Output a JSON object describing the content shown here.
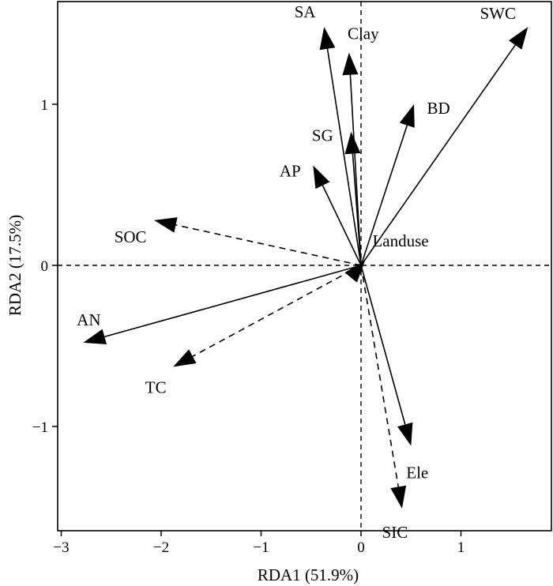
{
  "chart_data": {
    "type": "scatter",
    "subtype": "rda-biplot",
    "title": "",
    "xlabel": "RDA1 (51.9%)",
    "ylabel": "RDA2 (17.5%)",
    "xlim": [
      -3.05,
      1.9
    ],
    "ylim": [
      -1.65,
      1.62
    ],
    "xticks": [
      -3,
      -2,
      -1,
      0,
      1
    ],
    "yticks": [
      -1,
      0,
      1
    ],
    "xtick_labels": [
      "−3",
      "−2",
      "−1",
      "0",
      "1"
    ],
    "ytick_labels": [
      "−1",
      "0",
      "1"
    ],
    "grid": false,
    "reference_lines": {
      "x": 0,
      "y": 0,
      "style": "dashed"
    },
    "vectors": [
      {
        "name": "SA",
        "x": -0.37,
        "y": 1.48,
        "style": "solid"
      },
      {
        "name": "Clay",
        "x": -0.12,
        "y": 1.32,
        "style": "solid"
      },
      {
        "name": "SWC",
        "x": 1.67,
        "y": 1.48,
        "style": "solid"
      },
      {
        "name": "BD",
        "x": 0.53,
        "y": 1.0,
        "style": "solid"
      },
      {
        "name": "SG",
        "x": -0.1,
        "y": 0.83,
        "style": "solid"
      },
      {
        "name": "AP",
        "x": -0.48,
        "y": 0.62,
        "style": "solid"
      },
      {
        "name": "SOC",
        "x": -2.07,
        "y": 0.28,
        "style": "dashed"
      },
      {
        "name": "Landuse",
        "x": 0.04,
        "y": 0.03,
        "style": "solid"
      },
      {
        "name": "AN",
        "x": -2.78,
        "y": -0.48,
        "style": "solid"
      },
      {
        "name": "TC",
        "x": -1.88,
        "y": -0.63,
        "style": "dashed"
      },
      {
        "name": "Ele",
        "x": 0.5,
        "y": -1.12,
        "style": "solid"
      },
      {
        "name": "SIC",
        "x": 0.41,
        "y": -1.51,
        "style": "dashed"
      }
    ]
  }
}
